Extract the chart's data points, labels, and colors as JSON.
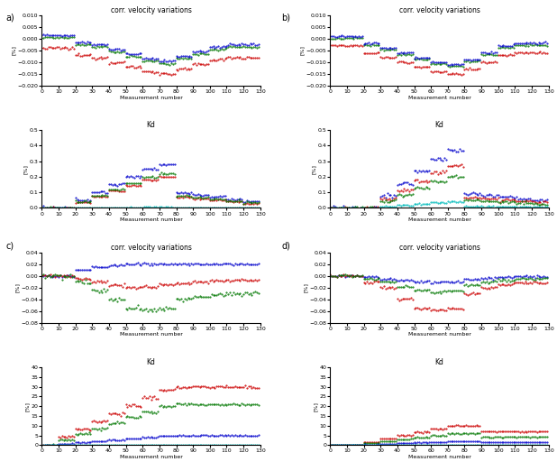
{
  "title_top": "corr. velocity variations",
  "title_bottom": "Kd",
  "xlabel": "Measurement number",
  "ylabel": "[%]",
  "colors": {
    "red": "#CC0000",
    "green": "#007700",
    "blue": "#0000CC",
    "cyan": "#00BBBB"
  },
  "n_measurements": 130,
  "n_per_level": 10,
  "marker_size": 1.0,
  "fontsize": 5.5,
  "tick_fontsize": 4.5
}
